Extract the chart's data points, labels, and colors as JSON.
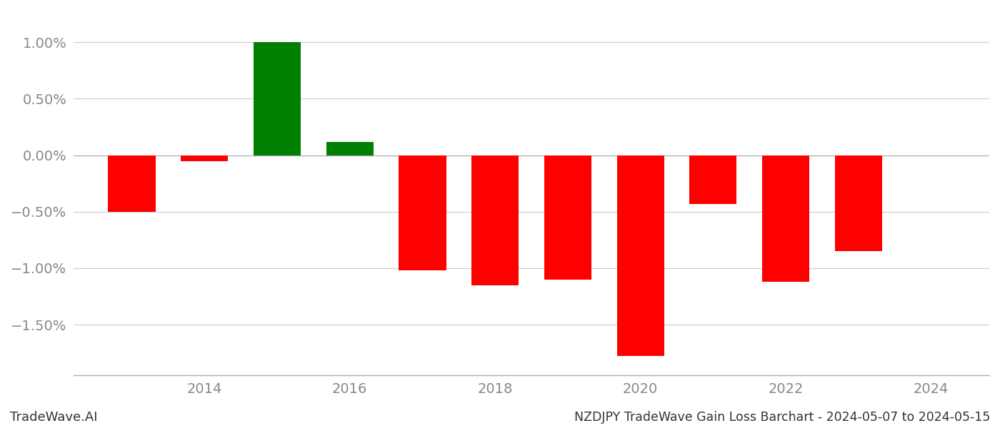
{
  "years": [
    2013,
    2014,
    2015,
    2016,
    2017,
    2018,
    2019,
    2020,
    2021,
    2022,
    2023
  ],
  "values": [
    -0.005,
    -0.0005,
    0.01,
    0.0012,
    -0.0102,
    -0.0115,
    -0.011,
    -0.0178,
    -0.0043,
    -0.0112,
    -0.0085
  ],
  "colors": [
    "#ff0000",
    "#ff0000",
    "#008000",
    "#008000",
    "#ff0000",
    "#ff0000",
    "#ff0000",
    "#ff0000",
    "#ff0000",
    "#ff0000",
    "#ff0000"
  ],
  "title": "NZDJPY TradeWave Gain Loss Barchart - 2024-05-07 to 2024-05-15",
  "watermark": "TradeWave.AI",
  "ylim_min": -0.0195,
  "ylim_max": 0.0128,
  "background_color": "#ffffff",
  "grid_color": "#cccccc",
  "bar_width": 0.65,
  "xlabel_fontsize": 14,
  "ylabel_fontsize": 14,
  "title_fontsize": 12.5,
  "watermark_fontsize": 13,
  "tick_color": "#888888"
}
